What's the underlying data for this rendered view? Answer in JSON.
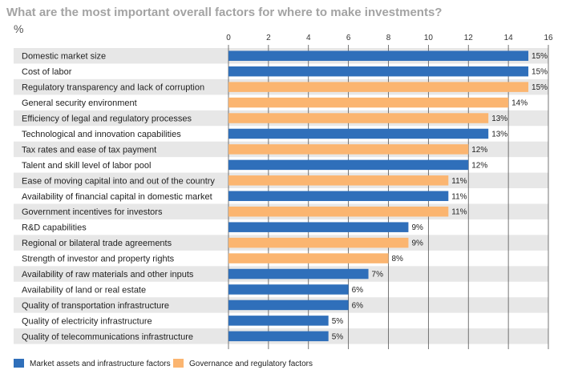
{
  "colors": {
    "market": "#2f6fba",
    "governance": "#fbb570",
    "title": "#a3a3a3",
    "band": "#e7e7e7",
    "grid": "#555555",
    "text": "#222222"
  },
  "chart_data": {
    "type": "bar",
    "orientation": "horizontal",
    "title": "What are the most important overall factors for where to make investments?",
    "unit": "%",
    "xlim": [
      0,
      16
    ],
    "xticks": [
      0,
      2,
      4,
      6,
      8,
      10,
      12,
      14,
      16
    ],
    "grid": true,
    "legend_position": "bottom-left",
    "legend": [
      {
        "key": "market",
        "label": "Market assets and infrastructure factors"
      },
      {
        "key": "governance",
        "label": "Governance and regulatory factors"
      }
    ],
    "bars": [
      {
        "category": "Domestic market size",
        "value": 15,
        "label": "15%",
        "group": "market"
      },
      {
        "category": "Cost of labor",
        "value": 15,
        "label": "15%",
        "group": "market"
      },
      {
        "category": "Regulatory transparency and lack of corruption",
        "value": 15,
        "label": "15%",
        "group": "governance"
      },
      {
        "category": "General security environment",
        "value": 14,
        "label": "14%",
        "group": "governance"
      },
      {
        "category": "Efficiency of legal and regulatory processes",
        "value": 13,
        "label": "13%",
        "group": "governance"
      },
      {
        "category": "Technological and innovation capabilities",
        "value": 13,
        "label": "13%",
        "group": "market"
      },
      {
        "category": "Tax rates and ease of tax payment",
        "value": 12,
        "label": "12%",
        "group": "governance"
      },
      {
        "category": "Talent and skill level of labor pool",
        "value": 12,
        "label": "12%",
        "group": "market"
      },
      {
        "category": "Ease of moving capital into and out of the country",
        "value": 11,
        "label": "11%",
        "group": "governance"
      },
      {
        "category": "Availability of financial capital in domestic market",
        "value": 11,
        "label": "11%",
        "group": "market"
      },
      {
        "category": "Government incentives for investors",
        "value": 11,
        "label": "11%",
        "group": "governance"
      },
      {
        "category": "R&D capabilities",
        "value": 9,
        "label": "9%",
        "group": "market"
      },
      {
        "category": "Regional or bilateral trade agreements",
        "value": 9,
        "label": "9%",
        "group": "governance"
      },
      {
        "category": "Strength of investor and property rights",
        "value": 8,
        "label": "8%",
        "group": "governance"
      },
      {
        "category": "Availability of raw materials and other inputs",
        "value": 7,
        "label": "7%",
        "group": "market"
      },
      {
        "category": "Availability of land or real estate",
        "value": 6,
        "label": "6%",
        "group": "market"
      },
      {
        "category": "Quality of transportation infrastructure",
        "value": 6,
        "label": "6%",
        "group": "market"
      },
      {
        "category": "Quality of electricity infrastructure",
        "value": 5,
        "label": "5%",
        "group": "market"
      },
      {
        "category": "Quality of telecommunications infrastructure",
        "value": 5,
        "label": "5%",
        "group": "market"
      }
    ]
  }
}
